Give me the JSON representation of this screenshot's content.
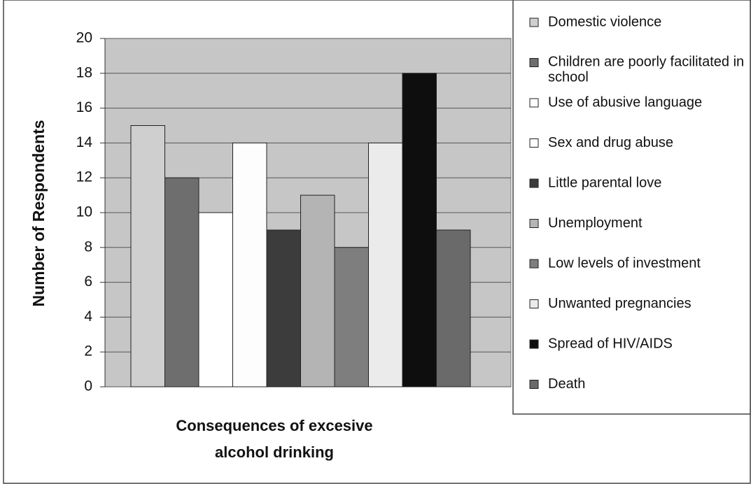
{
  "chart_data": {
    "type": "bar",
    "y_label": "Number of Respondents",
    "x_label": "Consequences of excesive alcohol drinking",
    "categories": [
      null
    ],
    "series": [
      {
        "name": "Domestic violence",
        "color": "#cfcfcf",
        "values": [
          15
        ]
      },
      {
        "name": "Children are poorly facilitated in school",
        "color": "#6e6e6e",
        "values": [
          12
        ]
      },
      {
        "name": "Use of abusive language",
        "color": "#ffffff",
        "values": [
          10
        ]
      },
      {
        "name": "Sex and drug abuse",
        "color": "#fdfdfd",
        "values": [
          14
        ]
      },
      {
        "name": "Little parental love",
        "color": "#3c3c3c",
        "values": [
          9
        ]
      },
      {
        "name": "Unemployment",
        "color": "#b4b4b4",
        "values": [
          11
        ]
      },
      {
        "name": "Low levels of investment",
        "color": "#7e7e7e",
        "values": [
          8
        ]
      },
      {
        "name": "Unwanted pregnancies",
        "color": "#ebebeb",
        "values": [
          14
        ]
      },
      {
        "name": "Spread of HIV/AIDS",
        "color": "#0e0e0e",
        "values": [
          18
        ]
      },
      {
        "name": "Death",
        "color": "#6a6a6a",
        "values": [
          9
        ]
      }
    ],
    "ylim": [
      0,
      20
    ],
    "yticks": [
      0,
      2,
      4,
      6,
      8,
      10,
      12,
      14,
      16,
      18,
      20
    ],
    "grid": true,
    "legend": "right"
  }
}
